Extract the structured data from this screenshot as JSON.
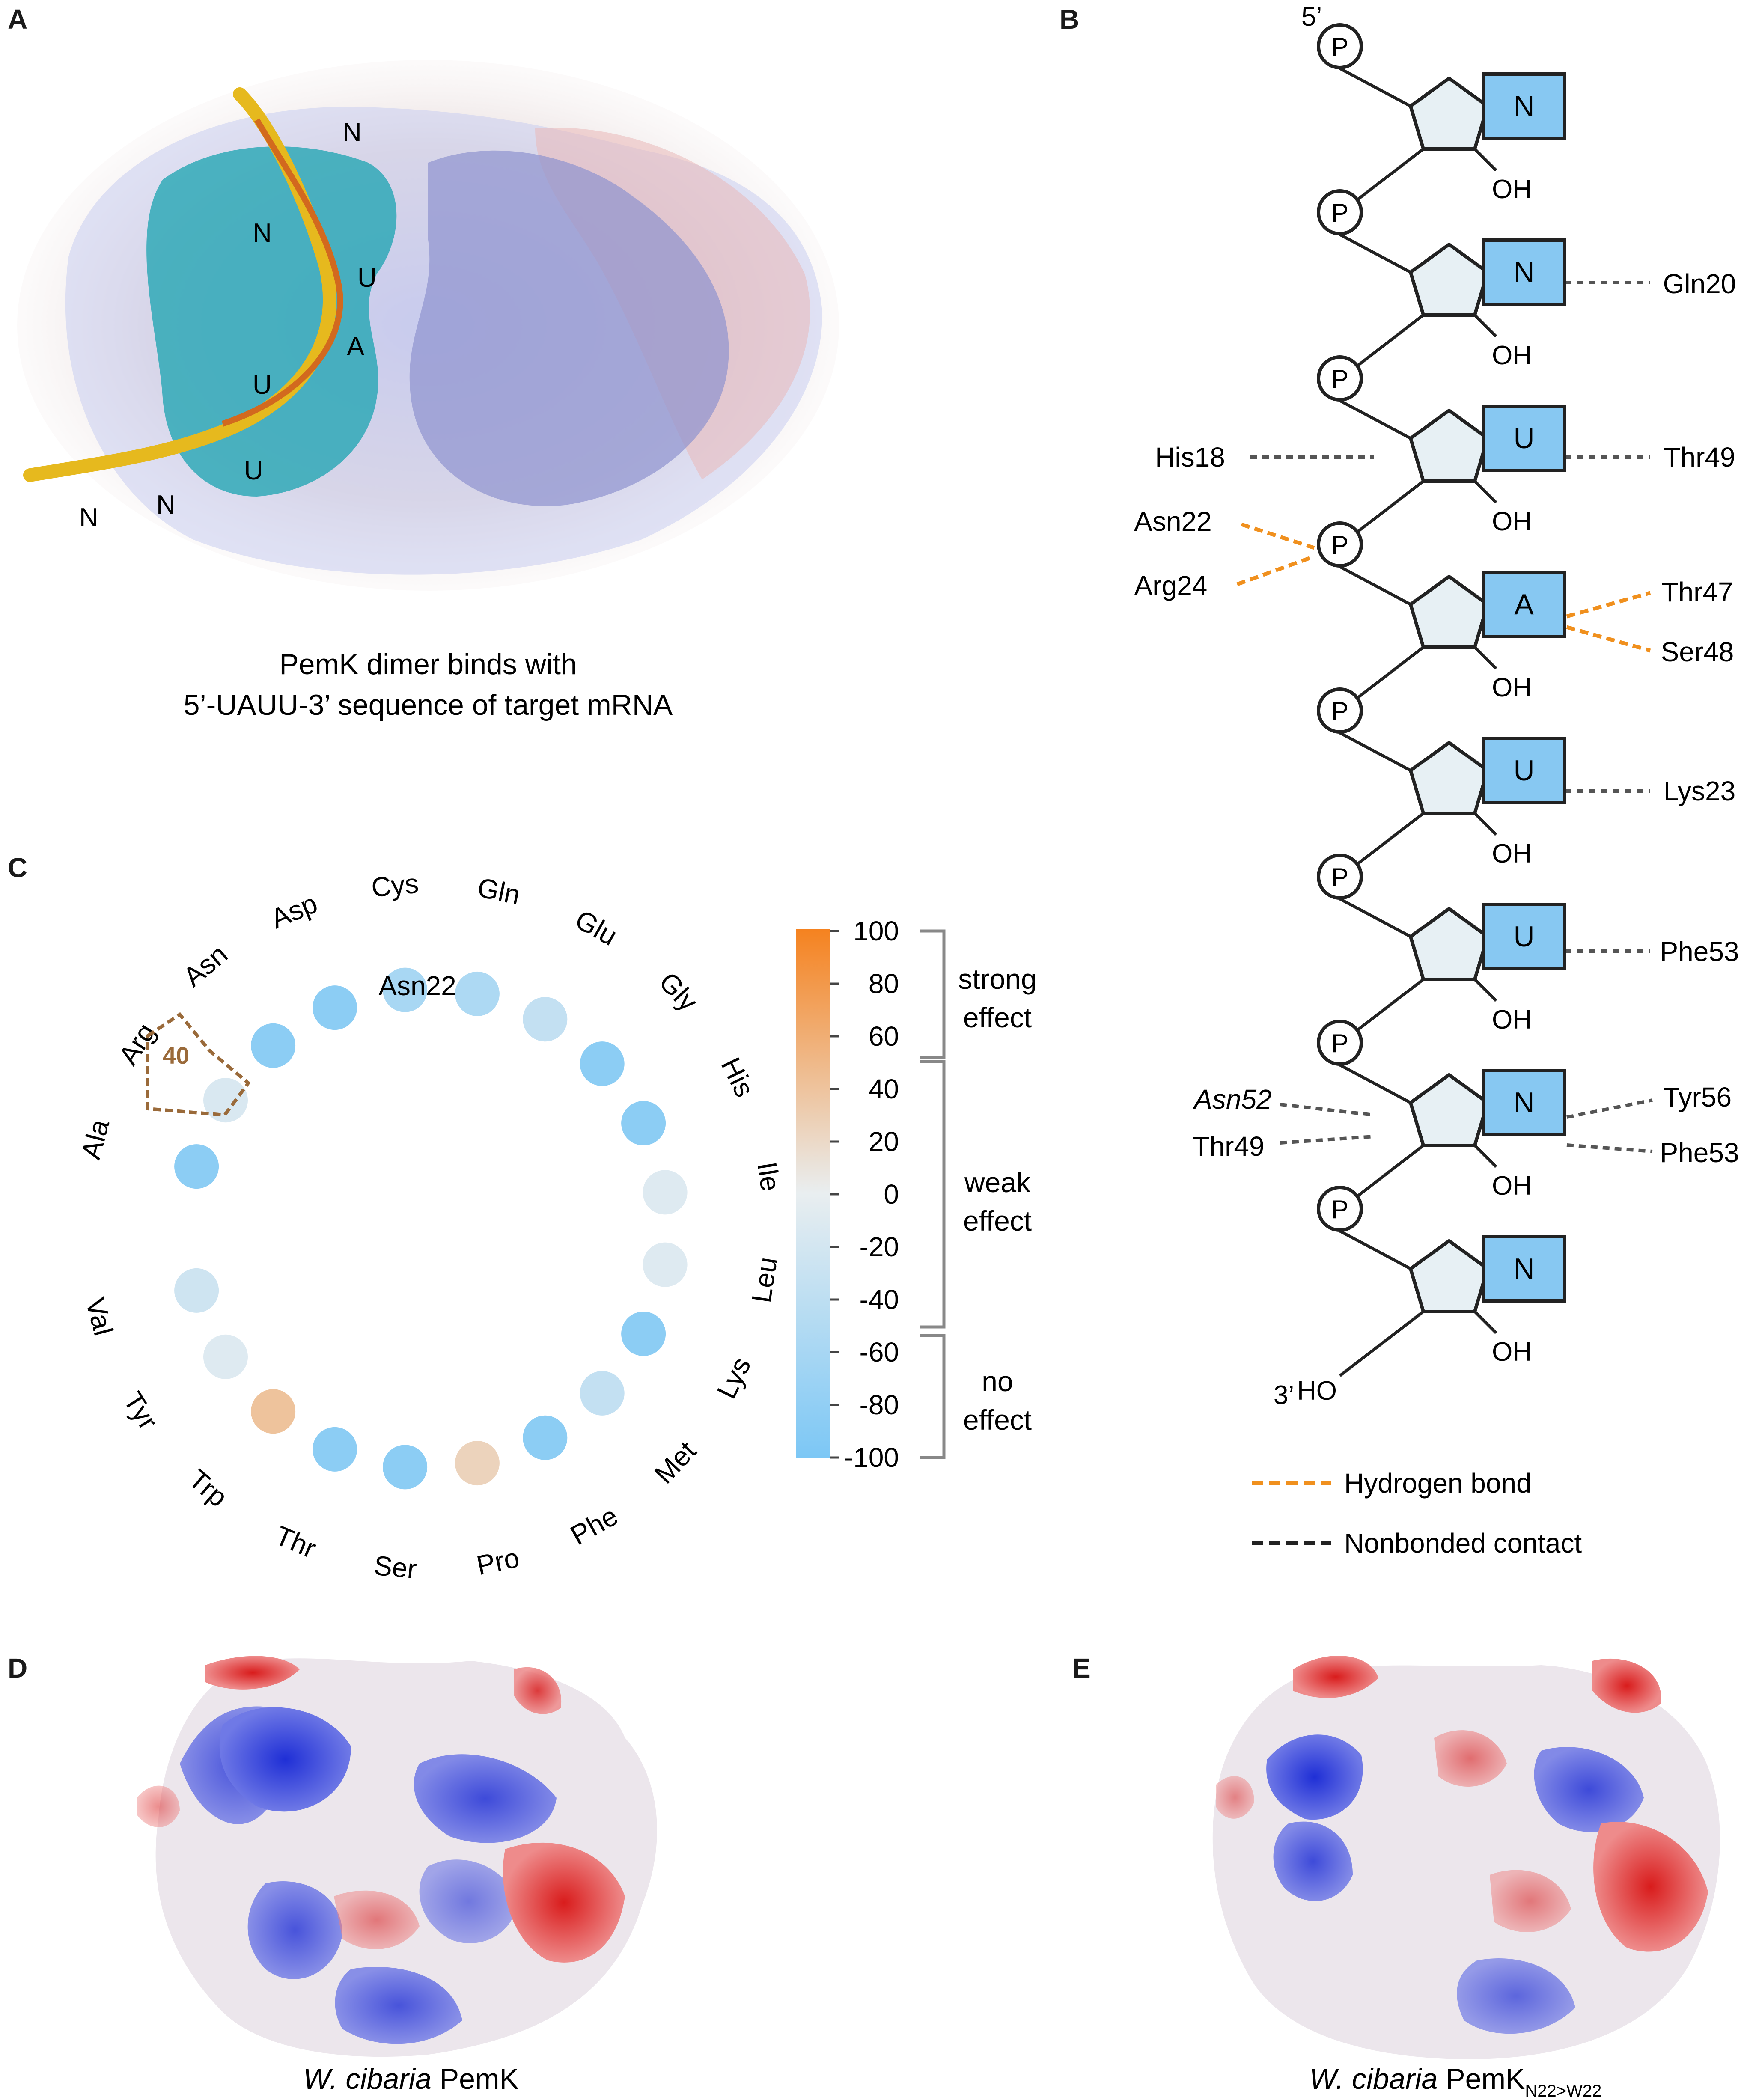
{
  "panels": {
    "a": "A",
    "b": "B",
    "c": "C",
    "d": "D",
    "e": "E"
  },
  "panel_a": {
    "caption_line1": "PemK dimer binds with",
    "caption_line2": "5’-UAUU-3’ sequence of target mRNA",
    "rna_labels": [
      "N",
      "N",
      "U",
      "A",
      "U",
      "U",
      "N",
      "N"
    ]
  },
  "panel_b": {
    "five_prime": "5’",
    "three_prime": "3’",
    "ho": "HO",
    "phosphate": "P",
    "hydroxyl": "OH",
    "bases": [
      "N",
      "N",
      "U",
      "A",
      "U",
      "U",
      "N",
      "N"
    ],
    "contacts_right": [
      "Gln20",
      "Thr49",
      "Thr47",
      "Ser48",
      "Lys23",
      "Phe53",
      "Tyr56",
      "Phe53"
    ],
    "contacts_left": [
      "His18",
      "Asn22",
      "Arg24",
      "Asn52",
      "Thr49"
    ],
    "legend_hbond": "Hydrogen bond",
    "legend_nonbond": "Nonbonded contact",
    "colors": {
      "base_fill": "#87c8f2",
      "sugar_fill": "#e7f0f4",
      "hbond": "#f0901e",
      "nonbond": "#555555"
    }
  },
  "panel_c": {
    "center_label": "Asn22",
    "highlight_value": "40",
    "residues": [
      {
        "name": "Ala",
        "value": -85
      },
      {
        "name": "Arg",
        "value": -15
      },
      {
        "name": "Asn",
        "value": -85
      },
      {
        "name": "Asp",
        "value": -85
      },
      {
        "name": "Cys",
        "value": -60
      },
      {
        "name": "Gln",
        "value": -55
      },
      {
        "name": "Glu",
        "value": -35
      },
      {
        "name": "Gly",
        "value": -85
      },
      {
        "name": "His",
        "value": -85
      },
      {
        "name": "Ile",
        "value": -10
      },
      {
        "name": "Leu",
        "value": -10
      },
      {
        "name": "Lys",
        "value": -85
      },
      {
        "name": "Met",
        "value": -35
      },
      {
        "name": "Phe",
        "value": -85
      },
      {
        "name": "Pro",
        "value": 25
      },
      {
        "name": "Ser",
        "value": -85
      },
      {
        "name": "Thr",
        "value": -85
      },
      {
        "name": "Trp",
        "value": 40
      },
      {
        "name": "Tyr",
        "value": -10
      },
      {
        "name": "Val",
        "value": -25
      }
    ],
    "colorbar_ticks": [
      "100",
      "80",
      "60",
      "40",
      "20",
      "0",
      "-20",
      "-40",
      "-60",
      "-80",
      "-100"
    ],
    "colorbar_range": [
      -100,
      100
    ],
    "groups": [
      {
        "line1": "strong",
        "line2": "effect"
      },
      {
        "line1": "weak",
        "line2": "effect"
      },
      {
        "line1": "no",
        "line2": "effect"
      }
    ],
    "colors": {
      "positive": "#f5821f",
      "zero": "#e9eef0",
      "negative": "#7cc7f5",
      "highlight": "#9a6a3a"
    }
  },
  "panel_d": {
    "caption_italic": "W. cibaria",
    "caption_rest": " PemK"
  },
  "panel_e": {
    "caption_italic": "W. cibaria",
    "caption_rest": " PemK",
    "caption_sub": "N22>W22"
  }
}
